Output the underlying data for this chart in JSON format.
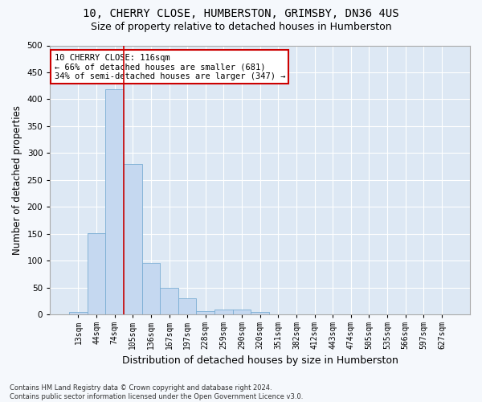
{
  "title1": "10, CHERRY CLOSE, HUMBERSTON, GRIMSBY, DN36 4US",
  "title2": "Size of property relative to detached houses in Humberston",
  "xlabel": "Distribution of detached houses by size in Humberston",
  "ylabel": "Number of detached properties",
  "footnote": "Contains HM Land Registry data © Crown copyright and database right 2024.\nContains public sector information licensed under the Open Government Licence v3.0.",
  "bin_labels": [
    "13sqm",
    "44sqm",
    "74sqm",
    "105sqm",
    "136sqm",
    "167sqm",
    "197sqm",
    "228sqm",
    "259sqm",
    "290sqm",
    "320sqm",
    "351sqm",
    "382sqm",
    "412sqm",
    "443sqm",
    "474sqm",
    "505sqm",
    "535sqm",
    "566sqm",
    "597sqm",
    "627sqm"
  ],
  "bar_values": [
    5,
    152,
    418,
    280,
    96,
    50,
    30,
    7,
    10,
    10,
    5,
    0,
    0,
    0,
    0,
    0,
    0,
    0,
    0,
    0,
    0
  ],
  "bar_color": "#c5d8f0",
  "bar_edge_color": "#7aadd4",
  "annotation_text": "10 CHERRY CLOSE: 116sqm\n← 66% of detached houses are smaller (681)\n34% of semi-detached houses are larger (347) →",
  "annotation_box_color": "#ffffff",
  "annotation_border_color": "#cc0000",
  "red_line_color": "#cc0000",
  "red_line_x": 2.5,
  "ylim": [
    0,
    500
  ],
  "yticks": [
    0,
    50,
    100,
    150,
    200,
    250,
    300,
    350,
    400,
    450,
    500
  ],
  "background_color": "#dde8f4",
  "grid_color": "#ffffff",
  "fig_bg_color": "#f5f8fc",
  "title1_fontsize": 10,
  "title2_fontsize": 9,
  "xlabel_fontsize": 9,
  "ylabel_fontsize": 8.5,
  "annotation_fontsize": 7.5,
  "tick_fontsize": 7,
  "ytick_fontsize": 7.5
}
